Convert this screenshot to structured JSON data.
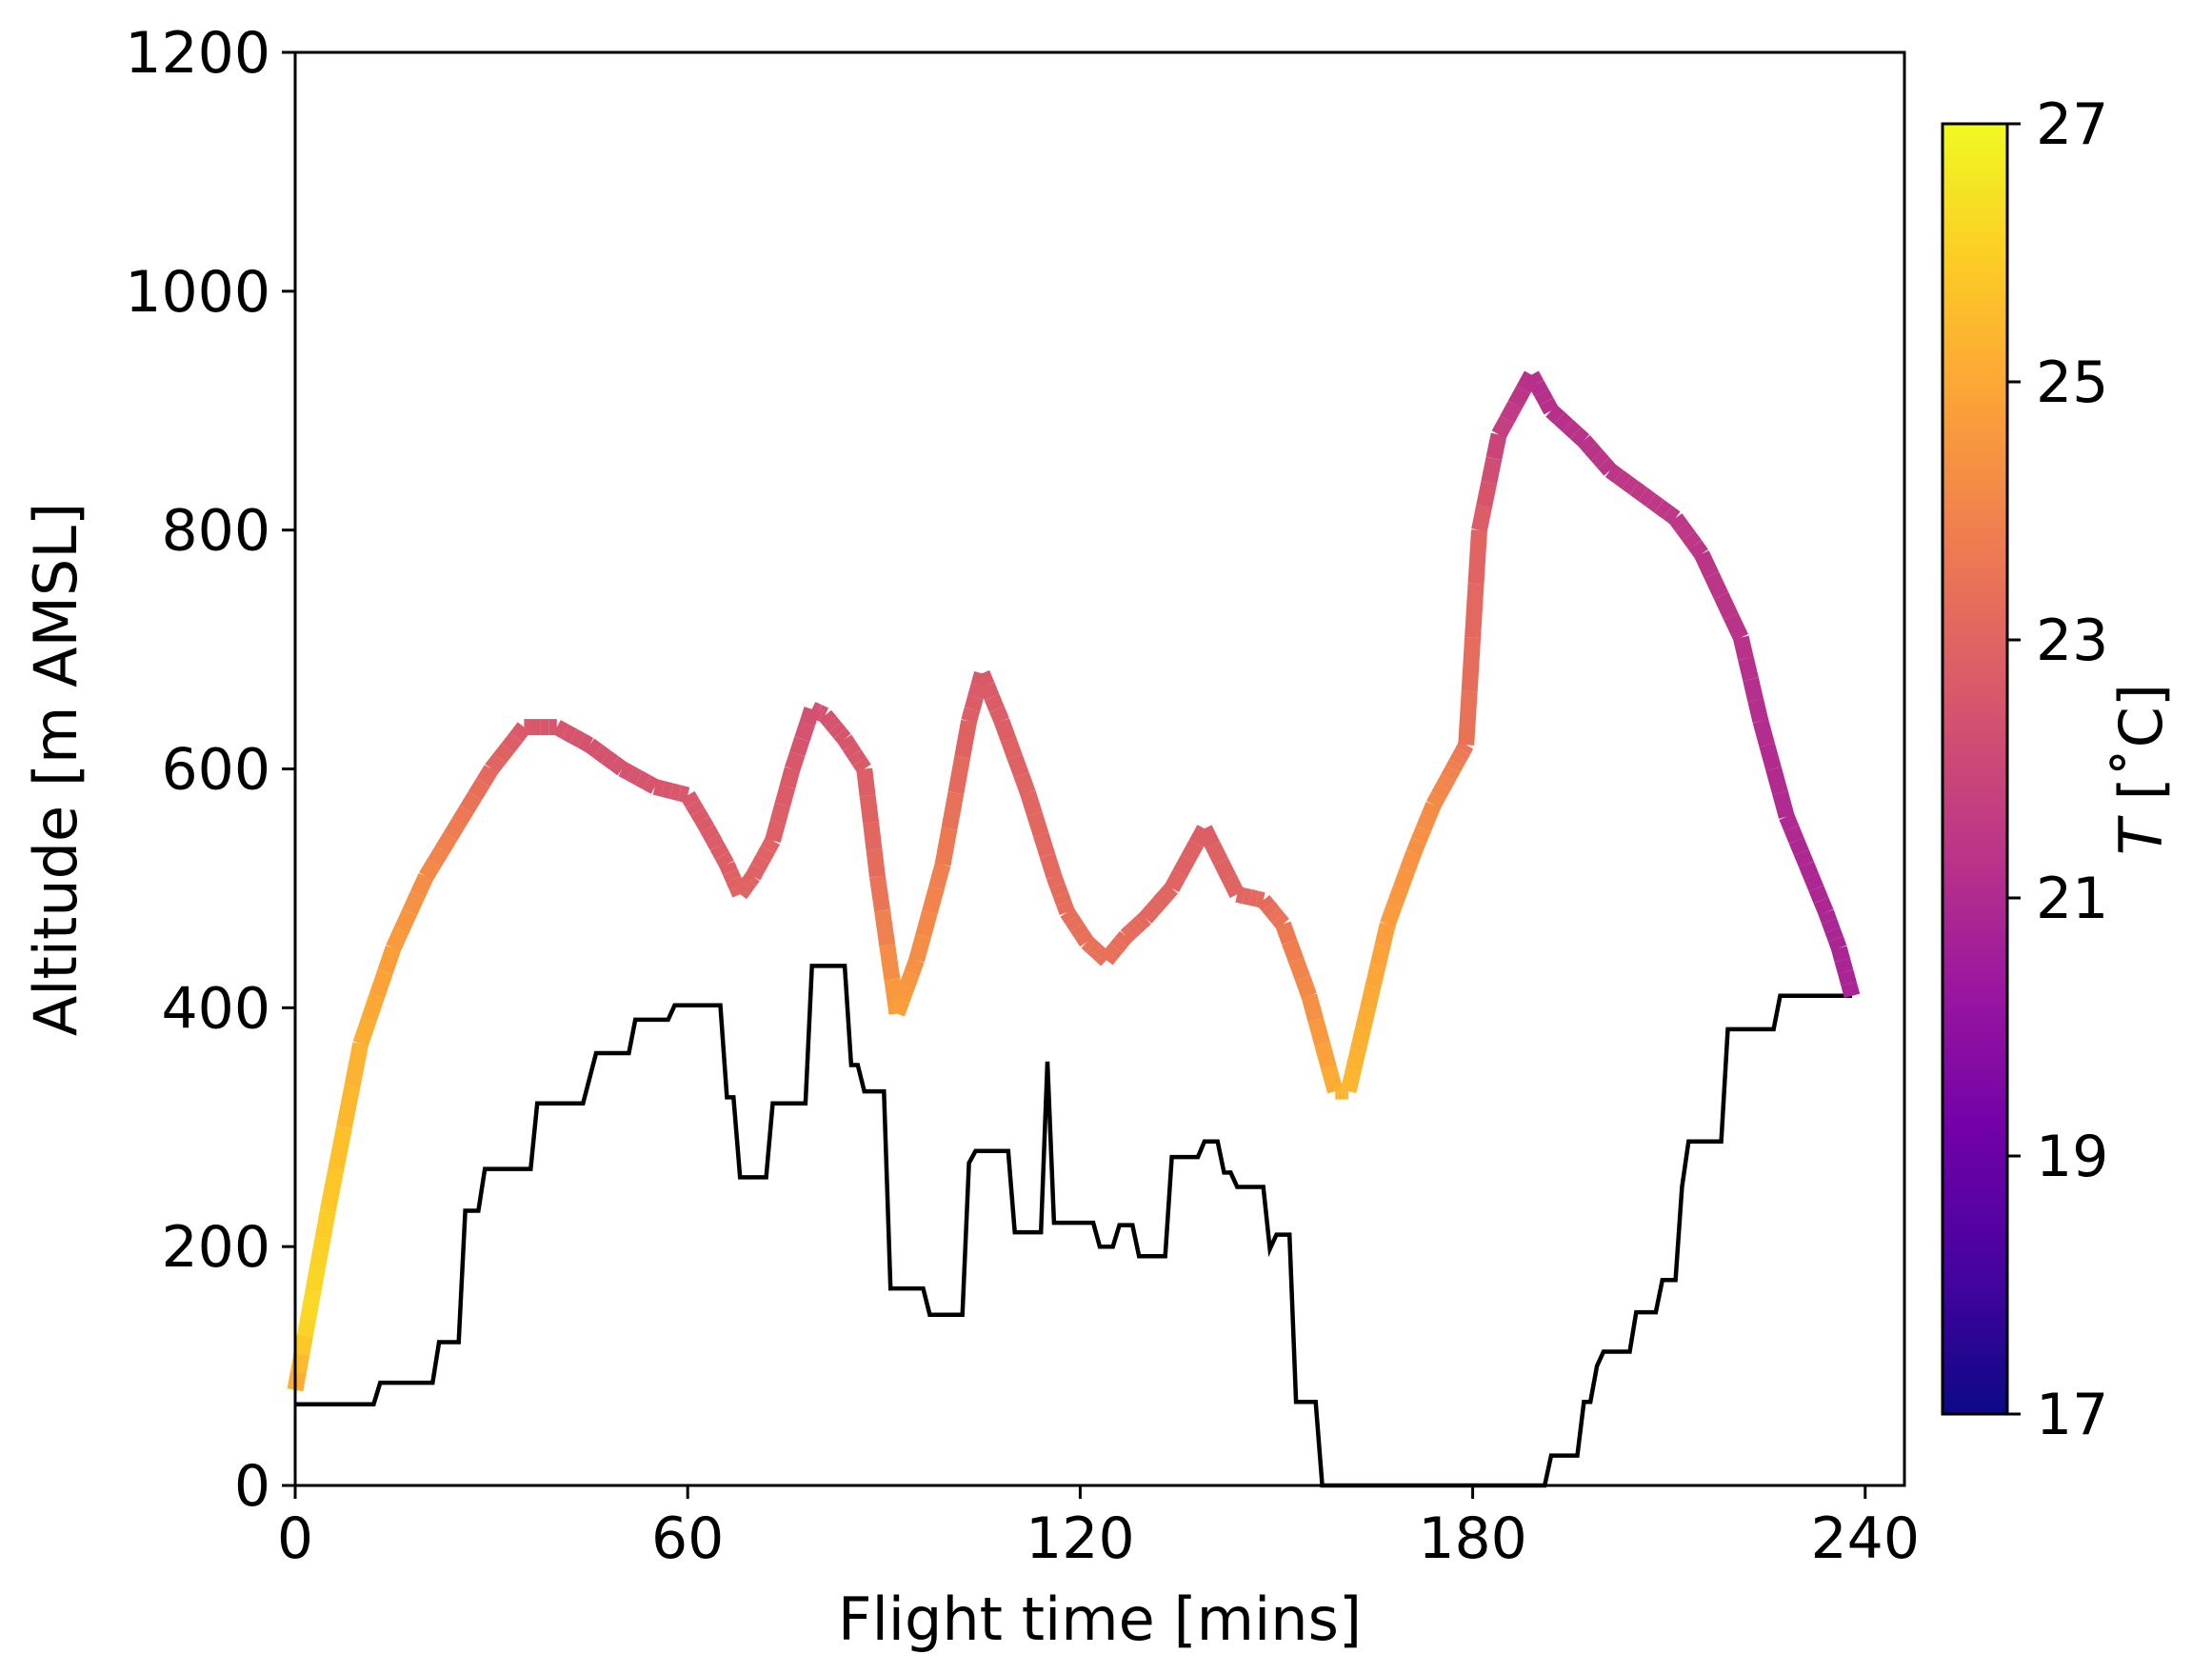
{
  "chart_data": {
    "type": "line",
    "xlabel": "Flight time [mins]",
    "ylabel": "Altitude [m AMSL]",
    "xlim": [
      0,
      246
    ],
    "ylim": [
      0,
      1200
    ],
    "x_ticks": [
      "0",
      "60",
      "120",
      "180",
      "240"
    ],
    "y_ticks": [
      "0",
      "200",
      "400",
      "600",
      "800",
      "1000",
      "1200"
    ],
    "grid": false,
    "legend": "none",
    "colorbar": {
      "label_symbol": "T",
      "label_unit": " [˚C]",
      "range": [
        17,
        27
      ],
      "ticks": [
        "17",
        "19",
        "21",
        "23",
        "25",
        "27"
      ],
      "colormap": "plasma",
      "stops": [
        "#0d0887",
        "#46039f",
        "#7201a8",
        "#9c179e",
        "#bd3786",
        "#d8576b",
        "#ed7953",
        "#fb9f3a",
        "#fdca26",
        "#f0f921"
      ]
    },
    "series": [
      {
        "role": "flight altitude colored by temperature",
        "color_by": "temperature",
        "points": [
          [
            0,
            80,
            25.0
          ],
          [
            2,
            140,
            26.3
          ],
          [
            5,
            230,
            25.9
          ],
          [
            10,
            370,
            25.2
          ],
          [
            15,
            450,
            24.7
          ],
          [
            20,
            510,
            24.2
          ],
          [
            25,
            555,
            23.7
          ],
          [
            30,
            600,
            23.1
          ],
          [
            35,
            635,
            22.6
          ],
          [
            40,
            635,
            22.5
          ],
          [
            45,
            620,
            22.4
          ],
          [
            50,
            600,
            22.4
          ],
          [
            55,
            585,
            22.5
          ],
          [
            60,
            578,
            22.6
          ],
          [
            63,
            550,
            22.7
          ],
          [
            66,
            520,
            22.8
          ],
          [
            68,
            495,
            23.0
          ],
          [
            70,
            510,
            22.9
          ],
          [
            73,
            540,
            22.9
          ],
          [
            76,
            600,
            22.6
          ],
          [
            79,
            650,
            22.3
          ],
          [
            81,
            645,
            22.4
          ],
          [
            84,
            625,
            22.5
          ],
          [
            87,
            600,
            22.7
          ],
          [
            89,
            510,
            23.3
          ],
          [
            92,
            395,
            24.8
          ],
          [
            95,
            440,
            24.3
          ],
          [
            99,
            520,
            23.8
          ],
          [
            103,
            640,
            22.8
          ],
          [
            105,
            680,
            22.6
          ],
          [
            108,
            640,
            22.8
          ],
          [
            112,
            580,
            23.0
          ],
          [
            116,
            510,
            23.2
          ],
          [
            118,
            480,
            23.3
          ],
          [
            121,
            455,
            23.4
          ],
          [
            124,
            440,
            23.4
          ],
          [
            127,
            460,
            23.3
          ],
          [
            130,
            475,
            23.1
          ],
          [
            134,
            500,
            23.0
          ],
          [
            139,
            550,
            22.8
          ],
          [
            144,
            495,
            23.0
          ],
          [
            148,
            490,
            23.2
          ],
          [
            151,
            470,
            23.6
          ],
          [
            155,
            410,
            24.2
          ],
          [
            159,
            330,
            25.2
          ],
          [
            161,
            330,
            25.4
          ],
          [
            164,
            400,
            25.1
          ],
          [
            167,
            470,
            24.7
          ],
          [
            171,
            530,
            24.4
          ],
          [
            174,
            570,
            24.2
          ],
          [
            177,
            600,
            23.9
          ],
          [
            179,
            620,
            23.5
          ],
          [
            181,
            800,
            22.9
          ],
          [
            184,
            880,
            21.8
          ],
          [
            189,
            930,
            21.2
          ],
          [
            192,
            900,
            21.2
          ],
          [
            197,
            875,
            21.3
          ],
          [
            201,
            850,
            21.4
          ],
          [
            206,
            830,
            21.5
          ],
          [
            211,
            810,
            21.5
          ],
          [
            215,
            780,
            21.4
          ],
          [
            221,
            710,
            21.3
          ],
          [
            224,
            640,
            21.1
          ],
          [
            228,
            560,
            21.0
          ],
          [
            231,
            520,
            20.9
          ],
          [
            234,
            480,
            20.9
          ],
          [
            236,
            450,
            20.8
          ],
          [
            238,
            410,
            20.8
          ]
        ]
      },
      {
        "role": "terrain elevation",
        "color": "#000000",
        "points": [
          [
            0,
            68
          ],
          [
            12,
            68
          ],
          [
            13,
            86
          ],
          [
            21,
            86
          ],
          [
            22,
            120
          ],
          [
            25,
            120
          ],
          [
            26,
            230
          ],
          [
            28,
            230
          ],
          [
            29,
            265
          ],
          [
            36,
            265
          ],
          [
            37,
            320
          ],
          [
            44,
            320
          ],
          [
            46,
            362
          ],
          [
            51,
            362
          ],
          [
            52,
            390
          ],
          [
            57,
            390
          ],
          [
            58,
            402
          ],
          [
            65,
            402
          ],
          [
            66,
            325
          ],
          [
            67,
            325
          ],
          [
            68,
            258
          ],
          [
            72,
            258
          ],
          [
            73,
            320
          ],
          [
            78,
            320
          ],
          [
            79,
            435
          ],
          [
            84,
            435
          ],
          [
            85,
            352
          ],
          [
            86,
            352
          ],
          [
            87,
            330
          ],
          [
            90,
            330
          ],
          [
            91,
            165
          ],
          [
            96,
            165
          ],
          [
            97,
            143
          ],
          [
            102,
            143
          ],
          [
            103,
            270
          ],
          [
            104,
            280
          ],
          [
            109,
            280
          ],
          [
            110,
            212
          ],
          [
            114,
            212
          ],
          [
            115,
            355
          ],
          [
            116,
            220
          ],
          [
            122,
            220
          ],
          [
            123,
            200
          ],
          [
            125,
            200
          ],
          [
            126,
            218
          ],
          [
            128,
            218
          ],
          [
            129,
            192
          ],
          [
            133,
            192
          ],
          [
            134,
            275
          ],
          [
            138,
            275
          ],
          [
            139,
            288
          ],
          [
            141,
            288
          ],
          [
            142,
            262
          ],
          [
            143,
            262
          ],
          [
            144,
            250
          ],
          [
            148,
            250
          ],
          [
            149,
            198
          ],
          [
            150,
            210
          ],
          [
            152,
            210
          ],
          [
            153,
            70
          ],
          [
            156,
            70
          ],
          [
            157,
            0
          ],
          [
            190,
            0
          ],
          [
            191,
            0
          ],
          [
            192,
            25
          ],
          [
            196,
            25
          ],
          [
            197,
            70
          ],
          [
            198,
            70
          ],
          [
            199,
            100
          ],
          [
            200,
            112
          ],
          [
            204,
            112
          ],
          [
            205,
            145
          ],
          [
            208,
            145
          ],
          [
            209,
            172
          ],
          [
            211,
            172
          ],
          [
            212,
            250
          ],
          [
            213,
            288
          ],
          [
            218,
            288
          ],
          [
            219,
            382
          ],
          [
            226,
            382
          ],
          [
            227,
            410
          ],
          [
            238,
            410
          ]
        ]
      }
    ]
  }
}
